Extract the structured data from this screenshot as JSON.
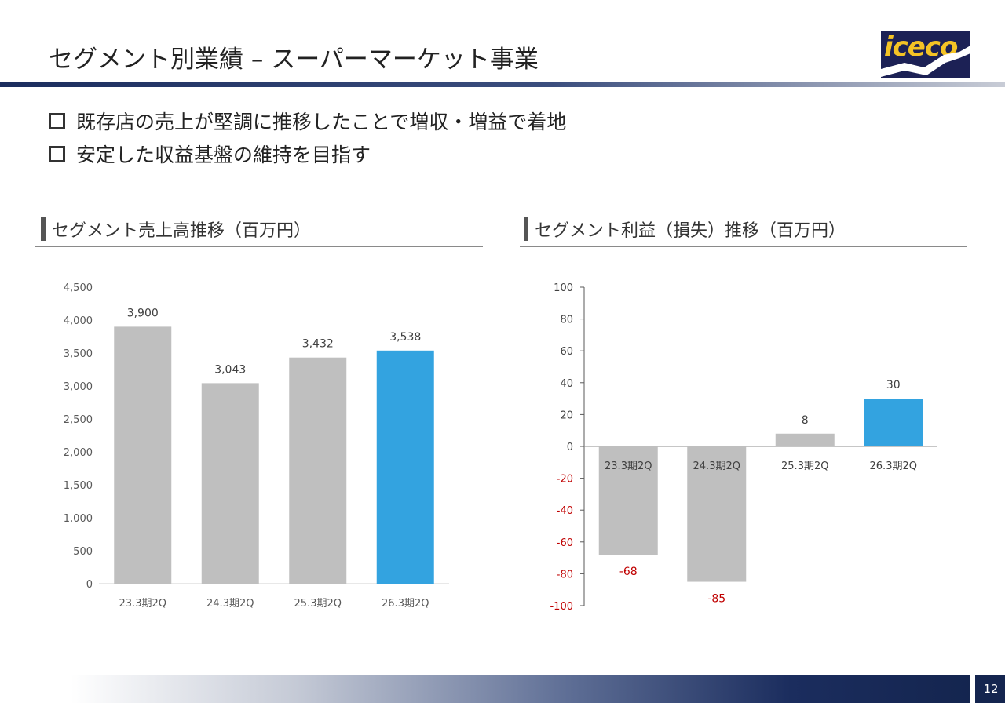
{
  "page": {
    "title": "セグメント別業績 – スーパーマーケット事業",
    "logo_text": "iceco",
    "page_number": "12"
  },
  "bullets": [
    "既存店の売上が堅調に推移したことで増収・増益で着地",
    "安定した収益基盤の維持を目指す"
  ],
  "colors": {
    "gray_bar": "#bfbfbf",
    "highlight_bar": "#33a3e0",
    "negative_label": "#c00000",
    "navy": "#1b2d5e"
  },
  "chart_data": [
    {
      "type": "bar",
      "title": "セグメント売上高推移（百万円）",
      "categories": [
        "23.3期2Q",
        "24.3期2Q",
        "25.3期2Q",
        "26.3期2Q"
      ],
      "values": [
        3900,
        3043,
        3432,
        3538
      ],
      "value_labels": [
        "3,900",
        "3,043",
        "3,432",
        "3,538"
      ],
      "ylim": [
        0,
        4500
      ],
      "yticks": [
        0,
        500,
        1000,
        1500,
        2000,
        2500,
        3000,
        3500,
        4000,
        4500
      ],
      "ytick_labels": [
        "0",
        "500",
        "1,000",
        "1,500",
        "2,000",
        "2,500",
        "3,000",
        "3,500",
        "4,000",
        "4,500"
      ],
      "highlight_index": 3,
      "xlabel": "",
      "ylabel": ""
    },
    {
      "type": "bar",
      "title": "セグメント利益（損失）推移（百万円）",
      "categories": [
        "23.3期2Q",
        "24.3期2Q",
        "25.3期2Q",
        "26.3期2Q"
      ],
      "values": [
        -68,
        -85,
        8,
        30
      ],
      "value_labels": [
        "-68",
        "-85",
        "8",
        "30"
      ],
      "ylim": [
        -100,
        100
      ],
      "yticks": [
        -100,
        -80,
        -60,
        -40,
        -20,
        0,
        20,
        40,
        60,
        80,
        100
      ],
      "ytick_labels": [
        "-100",
        "-80",
        "-60",
        "-40",
        "-20",
        "0",
        "20",
        "40",
        "60",
        "80",
        "100"
      ],
      "highlight_index": 3,
      "xlabel": "",
      "ylabel": ""
    }
  ]
}
